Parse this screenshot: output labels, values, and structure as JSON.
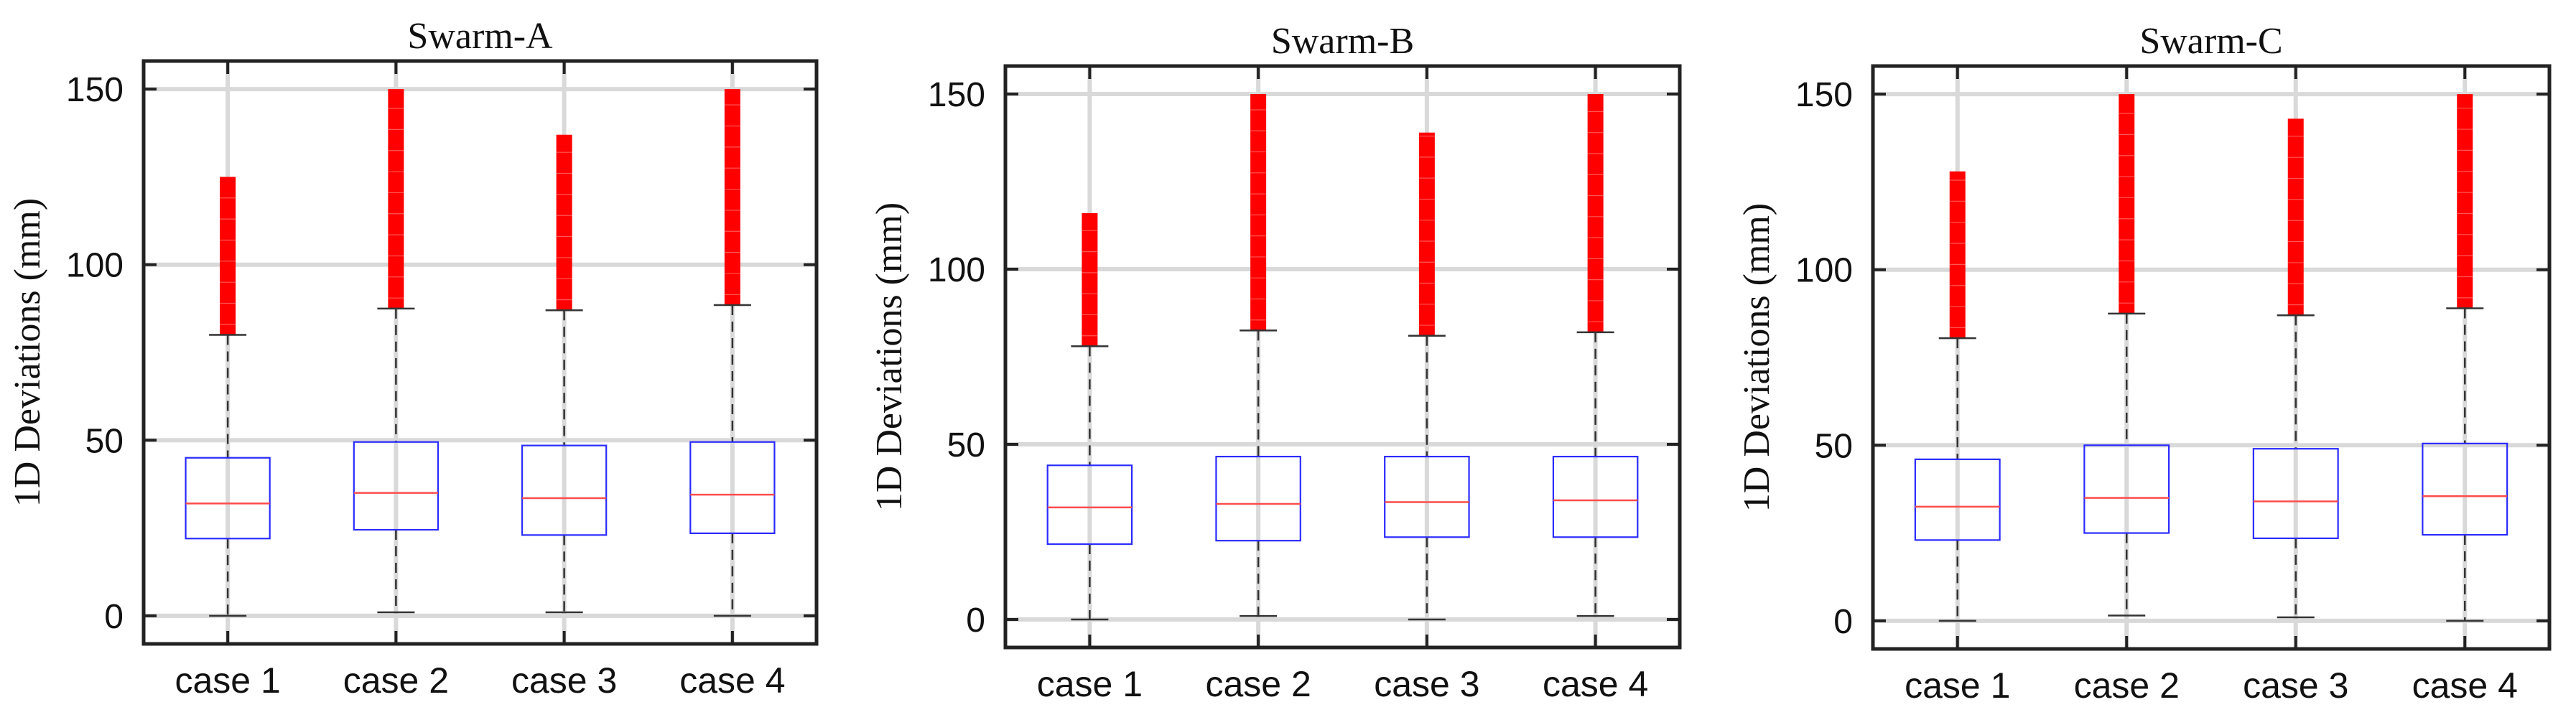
{
  "colors": {
    "box": "#2b2bff",
    "median": "#ff4d4d",
    "outlier": "#ff0000",
    "whisker": "#333333",
    "grid": "#d9d9d9",
    "axis": "#222222",
    "text": "#111111"
  },
  "chart_data": [
    {
      "type": "box",
      "title": "Swarm-A",
      "ylabel": "1D Deviations (mm)",
      "xlabel": "",
      "ylim": [
        -8,
        158
      ],
      "yticks": [
        0,
        50,
        100,
        150
      ],
      "grid": true,
      "categories": [
        "case 1",
        "case 2",
        "case 3",
        "case 4"
      ],
      "boxes": [
        {
          "min": 0,
          "q1": 22,
          "median": 32,
          "q3": 45,
          "max": 80,
          "outlier_low": 80,
          "outlier_high": 125
        },
        {
          "min": 1,
          "q1": 24.5,
          "median": 35,
          "q3": 49.5,
          "max": 87.5,
          "outlier_low": 87.5,
          "outlier_high": 150
        },
        {
          "min": 1,
          "q1": 23,
          "median": 33.5,
          "q3": 48.5,
          "max": 87,
          "outlier_low": 87,
          "outlier_high": 137
        },
        {
          "min": 0,
          "q1": 23.5,
          "median": 34.5,
          "q3": 49.5,
          "max": 88.5,
          "outlier_low": 88.5,
          "outlier_high": 150
        }
      ]
    },
    {
      "type": "box",
      "title": "Swarm-B",
      "ylabel": "1D Deviations (mm)",
      "xlabel": "",
      "ylim": [
        -8,
        158
      ],
      "yticks": [
        0,
        50,
        100,
        150
      ],
      "grid": true,
      "categories": [
        "case 1",
        "case 2",
        "case 3",
        "case 4"
      ],
      "boxes": [
        {
          "min": 0,
          "q1": 21.5,
          "median": 32,
          "q3": 44,
          "max": 78,
          "outlier_low": 78,
          "outlier_high": 116
        },
        {
          "min": 1,
          "q1": 22.5,
          "median": 33,
          "q3": 46.5,
          "max": 82.5,
          "outlier_low": 82.5,
          "outlier_high": 150
        },
        {
          "min": 0,
          "q1": 23.5,
          "median": 33.5,
          "q3": 46.5,
          "max": 81,
          "outlier_low": 81,
          "outlier_high": 139
        },
        {
          "min": 1,
          "q1": 23.5,
          "median": 34,
          "q3": 46.5,
          "max": 82,
          "outlier_low": 82,
          "outlier_high": 150
        }
      ]
    },
    {
      "type": "box",
      "title": "Swarm-C",
      "ylabel": "1D Deviations (mm)",
      "xlabel": "",
      "ylim": [
        -8,
        158
      ],
      "yticks": [
        0,
        50,
        100,
        150
      ],
      "grid": true,
      "categories": [
        "case 1",
        "case 2",
        "case 3",
        "case 4"
      ],
      "boxes": [
        {
          "min": 0,
          "q1": 23,
          "median": 32.5,
          "q3": 46,
          "max": 80.5,
          "outlier_low": 80.5,
          "outlier_high": 128
        },
        {
          "min": 1.5,
          "q1": 25,
          "median": 35,
          "q3": 50,
          "max": 87.5,
          "outlier_low": 87.5,
          "outlier_high": 150
        },
        {
          "min": 1,
          "q1": 23.5,
          "median": 34,
          "q3": 49,
          "max": 87,
          "outlier_low": 87,
          "outlier_high": 143
        },
        {
          "min": 0,
          "q1": 24.5,
          "median": 35.5,
          "q3": 50.5,
          "max": 89,
          "outlier_low": 89,
          "outlier_high": 150
        }
      ]
    }
  ]
}
